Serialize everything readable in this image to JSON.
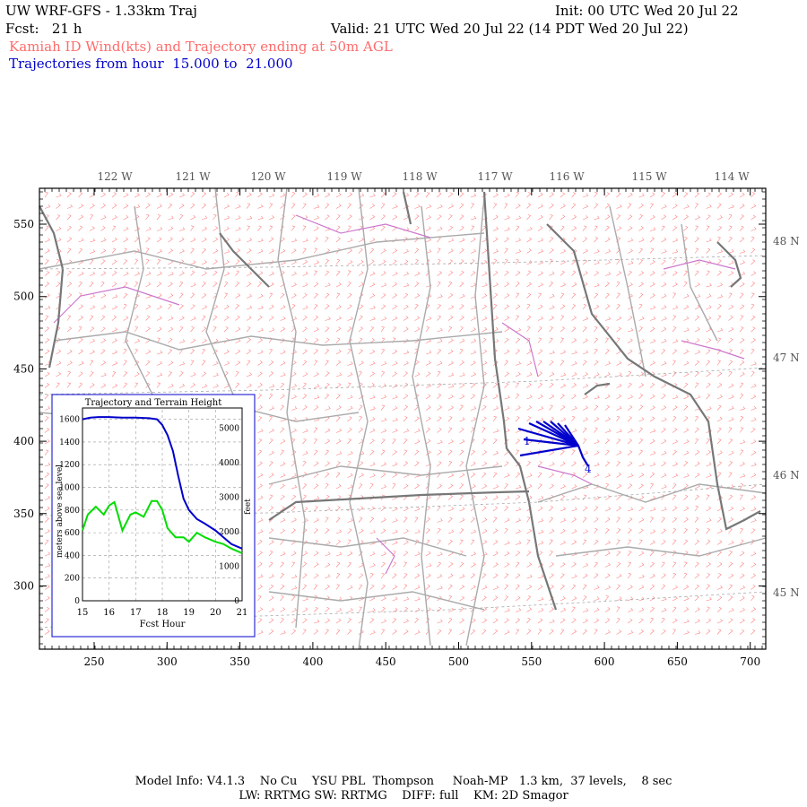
{
  "header": {
    "model_title": "UW WRF-GFS - 1.33km Traj",
    "init_time": "Init: 00 UTC Wed 20 Jul 22",
    "forecast": "Fcst:   21 h",
    "valid_time": "Valid: 21 UTC Wed 20 Jul 22 (14 PDT Wed 20 Jul 22)",
    "field_desc": "Kamiah ID Wind(kts) and Trajectory ending at 50m AGL",
    "traj_desc": "Trajectories from hour  15.000 to  21.000"
  },
  "map": {
    "x_ticks": [
      "250",
      "300",
      "350",
      "400",
      "450",
      "500",
      "550",
      "600",
      "650",
      "700"
    ],
    "y_ticks": [
      "550",
      "500",
      "450",
      "400",
      "350",
      "300"
    ],
    "lon_labels": [
      "122 W",
      "121 W",
      "120 W",
      "119 W",
      "118 W",
      "117 W",
      "116 W",
      "115 W",
      "114 W"
    ],
    "lat_labels": [
      "48 N",
      "47 N",
      "46 N",
      "45 N"
    ],
    "colors": {
      "wind_barbs": "#ff8080",
      "state_borders": "#777777",
      "county_borders": "#aaaaaa",
      "rivers": "#cc77cc",
      "trajectory": "#0000cc"
    },
    "traj_markers": [
      "1",
      "4"
    ]
  },
  "inset": {
    "title": "Trajectory and Terrain Height",
    "y_left_label": "meters above sea level",
    "y_right_label": "feet",
    "x_label": "Fcst Hour",
    "x_ticks": [
      "15",
      "16",
      "17",
      "18",
      "19",
      "20",
      "21"
    ],
    "y_left_ticks": [
      "0",
      "200",
      "400",
      "600",
      "800",
      "1000",
      "1200",
      "1400",
      "1600"
    ],
    "y_right_ticks": [
      "0",
      "1000",
      "2000",
      "3000",
      "4000",
      "5000"
    ]
  },
  "chart_data": {
    "type": "line",
    "title": "Trajectory and Terrain Height",
    "xlabel": "Fcst Hour",
    "ylabel": "meters above sea level",
    "xlim": [
      15,
      21
    ],
    "ylim": [
      0,
      1700
    ],
    "grid": true,
    "series": [
      {
        "color": "#0000cc",
        "x": [
          15.0,
          15.3,
          15.6,
          16.0,
          16.5,
          17.0,
          17.5,
          17.8,
          18.0,
          18.2,
          18.4,
          18.6,
          18.8,
          19.0,
          19.3,
          19.6,
          20.0,
          20.3,
          20.6,
          21.0
        ],
        "y": [
          1600,
          1615,
          1620,
          1620,
          1615,
          1615,
          1610,
          1600,
          1550,
          1460,
          1320,
          1100,
          900,
          800,
          720,
          680,
          620,
          560,
          500,
          460
        ]
      },
      {
        "color": "#00dd00",
        "x": [
          15.0,
          15.2,
          15.5,
          15.8,
          16.0,
          16.2,
          16.5,
          16.8,
          17.0,
          17.3,
          17.6,
          17.8,
          18.0,
          18.2,
          18.5,
          18.8,
          19.0,
          19.3,
          19.6,
          20.0,
          20.3,
          20.6,
          21.0
        ],
        "y": [
          620,
          760,
          830,
          760,
          840,
          870,
          620,
          760,
          780,
          740,
          880,
          880,
          800,
          640,
          560,
          560,
          520,
          600,
          560,
          520,
          500,
          460,
          420
        ]
      }
    ]
  },
  "footer": {
    "line1": "Model Info: V4.1.3    No Cu    YSU PBL  Thompson     Noah-MP   1.3 km,  37 levels,    8 sec",
    "line2": "LW: RRTMG SW: RRTMG    DIFF: full    KM: 2D Smagor"
  }
}
